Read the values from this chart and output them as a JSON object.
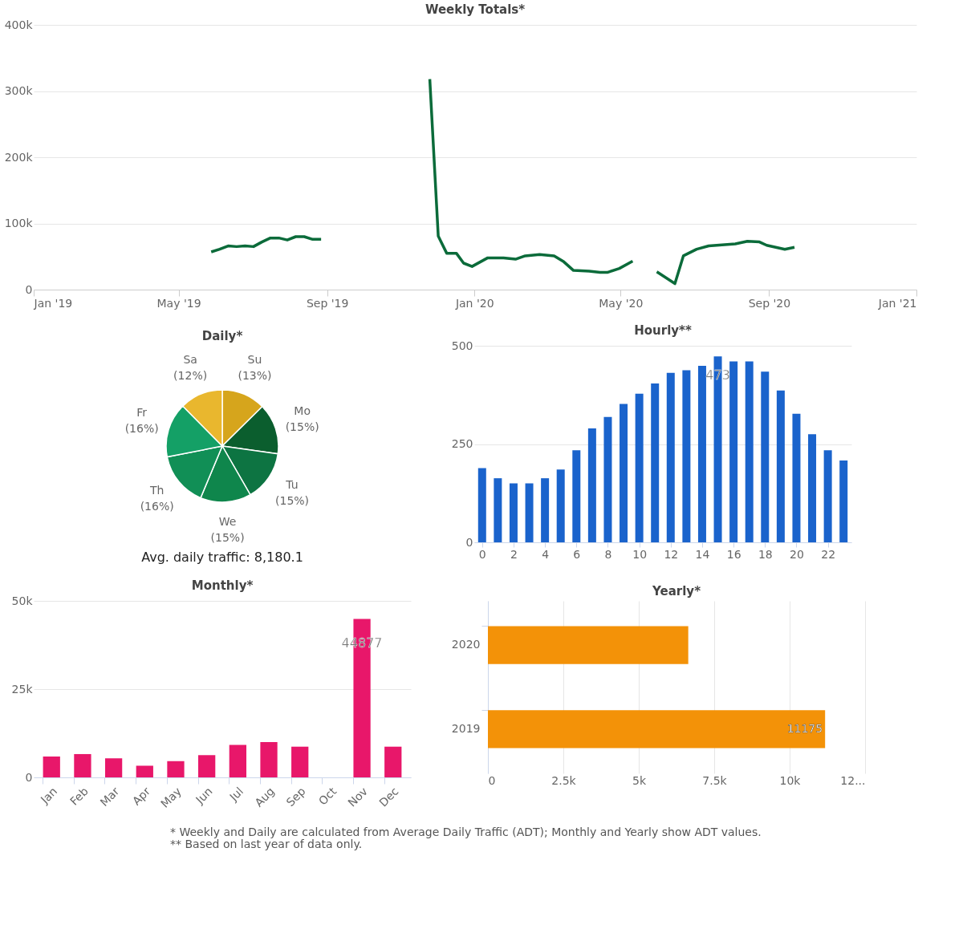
{
  "chart_data": [
    {
      "type": "line",
      "title": "Weekly Totals*",
      "x": [
        "2019-05-28",
        "2019-06-04",
        "2019-06-11",
        "2019-06-18",
        "2019-06-25",
        "2019-07-02",
        "2019-07-09",
        "2019-07-16",
        "2019-07-23",
        "2019-07-30",
        "2019-08-06",
        "2019-08-13",
        "2019-08-20",
        "2019-08-27",
        "2019-10-15",
        "2019-11-25",
        "2019-12-02",
        "2019-12-09",
        "2019-12-17",
        "2019-12-23",
        "2019-12-30",
        "2020-01-12",
        "2020-01-25",
        "2020-02-04",
        "2020-02-12",
        "2020-02-24",
        "2020-03-07",
        "2020-03-15",
        "2020-03-23",
        "2020-04-05",
        "2020-04-14",
        "2020-04-20",
        "2020-04-30",
        "2020-05-11",
        "2020-05-20",
        "2020-05-31",
        "2020-06-15",
        "2020-06-22",
        "2020-07-03",
        "2020-07-13",
        "2020-08-04",
        "2020-08-14",
        "2020-08-24",
        "2020-08-30",
        "2020-09-14",
        "2020-09-22"
      ],
      "series": [
        {
          "color": "#0b6b3a",
          "values": [
            57000,
            61000,
            66000,
            65000,
            66000,
            65000,
            72000,
            78000,
            78000,
            75000,
            80000,
            80000,
            76000,
            76000,
            null,
            318000,
            81000,
            55000,
            55000,
            40000,
            35000,
            48000,
            48000,
            46000,
            51000,
            53000,
            51000,
            42000,
            29000,
            28000,
            26000,
            26000,
            32000,
            43000,
            null,
            27000,
            9000,
            51000,
            61000,
            66000,
            69000,
            73000,
            72000,
            67000,
            61000,
            64000
          ]
        }
      ],
      "xlim": [
        "2019-01-01",
        "2021-01-01"
      ],
      "xticks": [
        {
          "value": "2019-01-01",
          "label": "Jan '19"
        },
        {
          "value": "2019-05-01",
          "label": "May '19"
        },
        {
          "value": "2019-09-01",
          "label": "Sep '19"
        },
        {
          "value": "2020-01-01",
          "label": "Jan '20"
        },
        {
          "value": "2020-05-01",
          "label": "May '20"
        },
        {
          "value": "2020-09-01",
          "label": "Sep '20"
        },
        {
          "value": "2021-01-01",
          "label": "Jan '21"
        }
      ],
      "ylim": [
        0,
        400000
      ],
      "yticks": [
        0,
        {
          "value": 100000,
          "label": "100k"
        },
        {
          "value": 200000,
          "label": "200k"
        },
        {
          "value": 300000,
          "label": "300k"
        },
        {
          "value": 400000,
          "label": "400k"
        }
      ],
      "grid": "y",
      "marker": "none",
      "line_style": "solid"
    },
    {
      "type": "pie",
      "title": "Daily*",
      "categories": [
        "Su",
        "Mo",
        "Tu",
        "We",
        "Th",
        "Fr",
        "Sa"
      ],
      "values": [
        12.6,
        14.6,
        14.5,
        14.6,
        15.6,
        15.7,
        12.4
      ],
      "value_labels": [
        "(13%)",
        "(15%)",
        "(15%)",
        "(15%)",
        "(16%)",
        "(16%)",
        "(12%)"
      ],
      "colors": [
        "#d6a51c",
        "#0b5e2e",
        "#0d7442",
        "#0f864c",
        "#118f56",
        "#14a066",
        "#e9b72e"
      ],
      "annotations": [
        "Avg. daily traffic: 8,180.1"
      ]
    },
    {
      "type": "bar",
      "title": "Hourly**",
      "x": [
        0,
        1,
        2,
        3,
        4,
        5,
        6,
        7,
        8,
        9,
        10,
        11,
        12,
        13,
        14,
        15,
        16,
        17,
        18,
        19,
        20,
        21,
        22,
        23
      ],
      "values": [
        189,
        163,
        150,
        150,
        163,
        185,
        234,
        290,
        319,
        352,
        378,
        404,
        431,
        438,
        449,
        473,
        460,
        460,
        434,
        386,
        327,
        275,
        234,
        208
      ],
      "value_labels": [
        null,
        null,
        null,
        null,
        null,
        null,
        null,
        null,
        null,
        null,
        null,
        null,
        null,
        null,
        null,
        "473",
        null,
        null,
        null,
        null,
        null,
        null,
        null,
        null
      ],
      "color": "#1a63cc",
      "xlim": [
        -0.5,
        23.5
      ],
      "xticks": [
        0,
        2,
        4,
        6,
        8,
        10,
        12,
        14,
        16,
        18,
        20,
        22
      ],
      "ylim": [
        0,
        500
      ],
      "yticks": [
        0,
        250,
        500
      ],
      "grid": "y"
    },
    {
      "type": "bar",
      "title": "Monthly*",
      "categories": [
        "Jan",
        "Feb",
        "Mar",
        "Apr",
        "May",
        "Jun",
        "Jul",
        "Aug",
        "Sep",
        "Oct",
        "Nov",
        "Dec"
      ],
      "values": [
        5900,
        6600,
        5400,
        3300,
        4600,
        6300,
        9200,
        10000,
        8700,
        null,
        44877,
        8700
      ],
      "value_labels": [
        null,
        null,
        null,
        null,
        null,
        null,
        null,
        null,
        null,
        null,
        "44877",
        null
      ],
      "color": "#e8176a",
      "ylim": [
        0,
        50000
      ],
      "yticks": [
        0,
        {
          "value": 25000,
          "label": "25k"
        },
        {
          "value": 50000,
          "label": "50k"
        }
      ],
      "grid": "y"
    },
    {
      "type": "bar",
      "title": "Yearly*",
      "orientation": "horizontal",
      "categories": [
        "2020",
        "2019"
      ],
      "values": [
        6640,
        11175
      ],
      "value_labels": [
        null,
        "11175"
      ],
      "color": "#f39208",
      "xlim": [
        0,
        12500
      ],
      "xticks": [
        0,
        {
          "value": 2500,
          "label": "2.5k"
        },
        {
          "value": 5000,
          "label": "5k"
        },
        {
          "value": 7500,
          "label": "7.5k"
        },
        {
          "value": 10000,
          "label": "10k"
        },
        {
          "value": 12500,
          "label": "12..."
        }
      ],
      "grid": "x",
      "annotations": [
        "* Weekly and Daily are calculated from Average Daily Traffic (ADT); Monthly and Yearly show ADT values.",
        "** Based on last year of data only."
      ]
    }
  ]
}
